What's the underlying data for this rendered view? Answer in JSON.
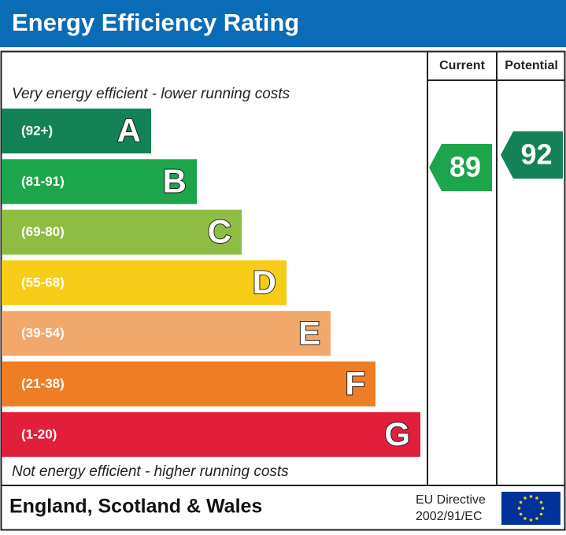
{
  "title": "Energy Efficiency Rating",
  "headers": {
    "current": "Current",
    "potential": "Potential"
  },
  "top_note": "Very energy efficient - lower running costs",
  "bottom_note": "Not energy efficient - higher running costs",
  "bands": [
    {
      "range": "(92+)",
      "letter": "A",
      "color": "#138256"
    },
    {
      "range": "(81-91)",
      "letter": "B",
      "color": "#1ca54a"
    },
    {
      "range": "(69-80)",
      "letter": "C",
      "color": "#8dbe43"
    },
    {
      "range": "(55-68)",
      "letter": "D",
      "color": "#f7cd18"
    },
    {
      "range": "(39-54)",
      "letter": "E",
      "color": "#f2a86b"
    },
    {
      "range": "(21-38)",
      "letter": "F",
      "color": "#ee7d26"
    },
    {
      "range": "(1-20)",
      "letter": "G",
      "color": "#e21f3b"
    }
  ],
  "current": {
    "value": "89",
    "color": "#1ca54a"
  },
  "potential": {
    "value": "92",
    "color": "#138256"
  },
  "footer": {
    "region": "England, Scotland & Wales",
    "directive": [
      "EU Directive",
      "2002/91/EC"
    ]
  }
}
